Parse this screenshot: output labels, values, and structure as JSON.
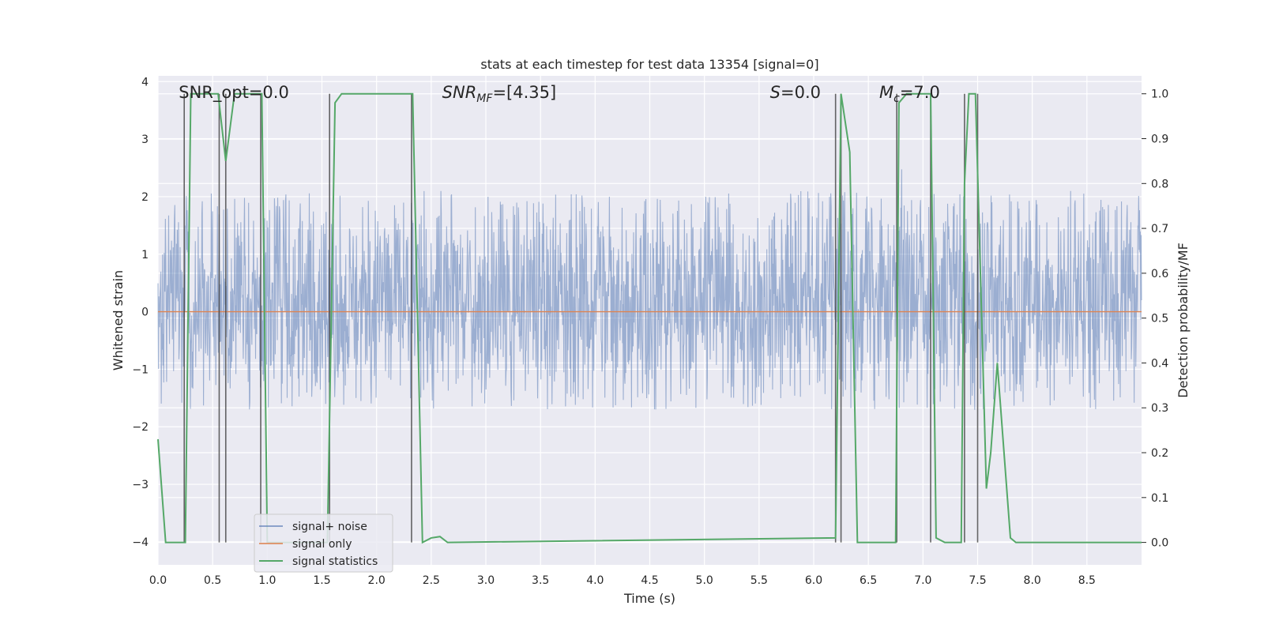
{
  "chart_data": {
    "type": "line",
    "title": "stats at each timestep for test data 13354 [signal=0]",
    "xlabel": "Time (s)",
    "ylabel_left": "Whitened strain",
    "ylabel_right": "Detection probability/MF",
    "xlim": [
      0.0,
      9.0
    ],
    "ylim_left": [
      -4.4,
      4.1
    ],
    "ylim_right": [
      -0.05,
      1.04
    ],
    "xticks": [
      "0.0",
      "0.5",
      "1.0",
      "1.5",
      "2.0",
      "2.5",
      "3.0",
      "3.5",
      "4.0",
      "4.5",
      "5.0",
      "5.5",
      "6.0",
      "6.5",
      "7.0",
      "7.5",
      "8.0",
      "8.5"
    ],
    "yticks_left": [
      "4",
      "3",
      "2",
      "1",
      "0",
      "−1",
      "−2",
      "−3",
      "−4"
    ],
    "yticks_right": [
      "1.0",
      "0.9",
      "0.8",
      "0.7",
      "0.6",
      "0.5",
      "0.4",
      "0.3",
      "0.2",
      "0.1",
      "0.0"
    ],
    "grid": true,
    "legend_placement": "lower-left",
    "colors": {
      "background": "#eaeaf2",
      "noise": "#4c72b0",
      "signal_only": "#dd8452",
      "statistics": "#55a868",
      "vlines": "#404040"
    },
    "series": [
      {
        "name": "signal+ noise",
        "axis": "left",
        "style": "dense noise trace",
        "core_range": [
          -1.7,
          2.1
        ],
        "spike_range": [
          -4.0,
          3.7
        ]
      },
      {
        "name": "signal only",
        "axis": "left",
        "x": [
          0.0,
          9.0
        ],
        "y": [
          0.0,
          0.0
        ]
      },
      {
        "name": "signal statistics",
        "axis": "right",
        "x": [
          0.0,
          0.07,
          0.25,
          0.3,
          0.55,
          0.62,
          0.7,
          0.95,
          1.0,
          1.55,
          1.62,
          1.68,
          2.33,
          2.42,
          2.5,
          2.58,
          2.65,
          6.2,
          6.25,
          6.33,
          6.4,
          6.75,
          6.78,
          6.85,
          7.07,
          7.12,
          7.2,
          7.35,
          7.38,
          7.42,
          7.48,
          7.58,
          7.62,
          7.68,
          7.8,
          7.85,
          9.0
        ],
        "y": [
          0.23,
          0.0,
          0.0,
          1.0,
          1.0,
          0.85,
          1.0,
          1.0,
          0.0,
          0.0,
          0.98,
          1.0,
          1.0,
          0.0,
          0.01,
          0.013,
          0.0,
          0.01,
          1.0,
          0.87,
          0.0,
          0.0,
          0.98,
          1.0,
          1.0,
          0.01,
          0.0,
          0.0,
          0.8,
          1.0,
          1.0,
          0.12,
          0.2,
          0.4,
          0.01,
          0.0,
          0.0
        ]
      }
    ],
    "vlines": [
      0.24,
      0.56,
      0.62,
      0.94,
      1.57,
      2.32,
      6.2,
      6.25,
      6.76,
      7.07,
      7.38,
      7.5
    ],
    "annotations": [
      {
        "text": "SNR_opt=0.0",
        "x": 0.19
      },
      {
        "text": "SNR_MF=[4.35]",
        "x": 2.6
      },
      {
        "text": "S=0.0",
        "x": 5.6
      },
      {
        "text": "M_c=7.0",
        "x": 6.6
      }
    ]
  }
}
